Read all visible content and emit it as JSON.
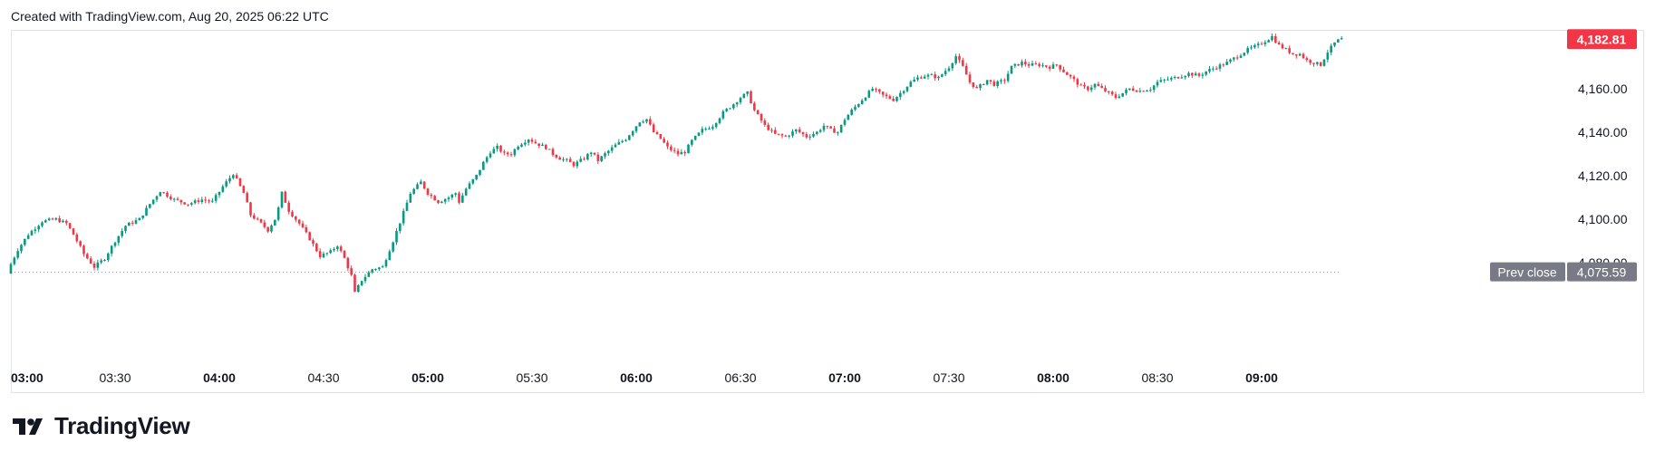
{
  "caption": "Created with TradingView.com, Aug 20, 2025 06:22 UTC",
  "brand": {
    "name": "TradingView",
    "logo_icon": "tradingview-logo-icon"
  },
  "colors": {
    "up": "#089981",
    "down": "#f23645",
    "prev_close_tag": "#787b86",
    "text": "#131722",
    "border": "#e0e3eb"
  },
  "chart_data": {
    "type": "candlestick",
    "title": "",
    "xlabel": "",
    "ylabel": "",
    "ylim": [
      4063,
      4190
    ],
    "xlim_minutes": [
      0,
      375
    ],
    "x_ticks": [
      {
        "label": "03:00",
        "minutes": 0,
        "bold": true
      },
      {
        "label": "03:30",
        "minutes": 30,
        "bold": false
      },
      {
        "label": "04:00",
        "minutes": 60,
        "bold": true
      },
      {
        "label": "04:30",
        "minutes": 90,
        "bold": false
      },
      {
        "label": "05:00",
        "minutes": 120,
        "bold": true
      },
      {
        "label": "05:30",
        "minutes": 150,
        "bold": false
      },
      {
        "label": "06:00",
        "minutes": 180,
        "bold": true
      },
      {
        "label": "06:30",
        "minutes": 210,
        "bold": false
      },
      {
        "label": "07:00",
        "minutes": 240,
        "bold": true
      },
      {
        "label": "07:30",
        "minutes": 270,
        "bold": false
      },
      {
        "label": "08:00",
        "minutes": 300,
        "bold": true
      },
      {
        "label": "08:30",
        "minutes": 330,
        "bold": false
      },
      {
        "label": "09:00",
        "minutes": 360,
        "bold": true
      }
    ],
    "y_ticks": [
      {
        "label": "4,080.00",
        "value": 4080
      },
      {
        "label": "4,100.00",
        "value": 4100
      },
      {
        "label": "4,120.00",
        "value": 4120
      },
      {
        "label": "4,140.00",
        "value": 4140
      },
      {
        "label": "4,160.00",
        "value": 4160
      }
    ],
    "last_price": {
      "label": "4,182.81",
      "value": 4182.81
    },
    "prev_close": {
      "label": "Prev close",
      "value_label": "4,075.59",
      "value": 4075.59
    },
    "grid": false,
    "path": [
      [
        0,
        4076
      ],
      [
        3,
        4086
      ],
      [
        6,
        4093
      ],
      [
        10,
        4099
      ],
      [
        14,
        4100
      ],
      [
        17,
        4098
      ],
      [
        19,
        4093
      ],
      [
        22,
        4084
      ],
      [
        25,
        4078
      ],
      [
        28,
        4082
      ],
      [
        31,
        4090
      ],
      [
        34,
        4097
      ],
      [
        38,
        4100
      ],
      [
        41,
        4107
      ],
      [
        44,
        4113
      ],
      [
        48,
        4109
      ],
      [
        52,
        4107
      ],
      [
        56,
        4109
      ],
      [
        59,
        4108
      ],
      [
        62,
        4115
      ],
      [
        65,
        4121
      ],
      [
        68,
        4112
      ],
      [
        70,
        4102
      ],
      [
        73,
        4098
      ],
      [
        75,
        4095
      ],
      [
        77,
        4100
      ],
      [
        78,
        4105
      ],
      [
        79,
        4112
      ],
      [
        81,
        4104
      ],
      [
        84,
        4098
      ],
      [
        87,
        4091
      ],
      [
        90,
        4083
      ],
      [
        93,
        4085
      ],
      [
        95,
        4088
      ],
      [
        97,
        4082
      ],
      [
        99,
        4074
      ],
      [
        100,
        4066
      ],
      [
        102,
        4072
      ],
      [
        105,
        4077
      ],
      [
        108,
        4078
      ],
      [
        111,
        4090
      ],
      [
        114,
        4103
      ],
      [
        116,
        4112
      ],
      [
        119,
        4117
      ],
      [
        121,
        4112
      ],
      [
        124,
        4108
      ],
      [
        127,
        4110
      ],
      [
        129,
        4112
      ],
      [
        130,
        4108
      ],
      [
        132,
        4114
      ],
      [
        135,
        4120
      ],
      [
        137,
        4126
      ],
      [
        139,
        4131
      ],
      [
        141,
        4133
      ],
      [
        143,
        4130
      ],
      [
        145,
        4130
      ],
      [
        147,
        4134
      ],
      [
        150,
        4137
      ],
      [
        152,
        4135
      ],
      [
        155,
        4133
      ],
      [
        157,
        4130
      ],
      [
        159,
        4128
      ],
      [
        161,
        4127
      ],
      [
        163,
        4125
      ],
      [
        166,
        4128
      ],
      [
        168,
        4131
      ],
      [
        170,
        4127
      ],
      [
        172,
        4130
      ],
      [
        175,
        4134
      ],
      [
        178,
        4137
      ],
      [
        180,
        4141
      ],
      [
        182,
        4145
      ],
      [
        184,
        4146
      ],
      [
        186,
        4140
      ],
      [
        188,
        4137
      ],
      [
        190,
        4133
      ],
      [
        193,
        4130
      ],
      [
        195,
        4131
      ],
      [
        197,
        4136
      ],
      [
        200,
        4141
      ],
      [
        203,
        4143
      ],
      [
        206,
        4149
      ],
      [
        209,
        4153
      ],
      [
        211,
        4156
      ],
      [
        213,
        4158
      ],
      [
        215,
        4150
      ],
      [
        218,
        4143
      ],
      [
        221,
        4139
      ],
      [
        224,
        4138
      ],
      [
        227,
        4141
      ],
      [
        230,
        4138
      ],
      [
        233,
        4140
      ],
      [
        235,
        4143
      ],
      [
        237,
        4141
      ],
      [
        239,
        4140
      ],
      [
        241,
        4146
      ],
      [
        243,
        4150
      ],
      [
        246,
        4155
      ],
      [
        249,
        4160
      ],
      [
        252,
        4157
      ],
      [
        255,
        4155
      ],
      [
        257,
        4158
      ],
      [
        260,
        4163
      ],
      [
        262,
        4165
      ],
      [
        264,
        4166
      ],
      [
        266,
        4166
      ],
      [
        268,
        4165
      ],
      [
        271,
        4170
      ],
      [
        273,
        4175
      ],
      [
        275,
        4170
      ],
      [
        277,
        4163
      ],
      [
        279,
        4160
      ],
      [
        282,
        4164
      ],
      [
        284,
        4162
      ],
      [
        287,
        4164
      ],
      [
        289,
        4170
      ],
      [
        292,
        4172
      ],
      [
        294,
        4171
      ],
      [
        297,
        4171
      ],
      [
        300,
        4170
      ],
      [
        302,
        4171
      ],
      [
        304,
        4168
      ],
      [
        307,
        4164
      ],
      [
        309,
        4161
      ],
      [
        311,
        4160
      ],
      [
        313,
        4162
      ],
      [
        315,
        4160
      ],
      [
        317,
        4158
      ],
      [
        319,
        4156
      ],
      [
        321,
        4158
      ],
      [
        323,
        4160
      ],
      [
        326,
        4159
      ],
      [
        329,
        4160
      ],
      [
        331,
        4163
      ],
      [
        333,
        4164
      ],
      [
        336,
        4165
      ],
      [
        338,
        4166
      ],
      [
        340,
        4167
      ],
      [
        343,
        4166
      ],
      [
        345,
        4168
      ],
      [
        348,
        4170
      ],
      [
        351,
        4172
      ],
      [
        354,
        4175
      ],
      [
        357,
        4178
      ],
      [
        360,
        4180
      ],
      [
        362,
        4182
      ],
      [
        364,
        4184
      ],
      [
        366,
        4180
      ],
      [
        368,
        4178
      ],
      [
        370,
        4176
      ],
      [
        372,
        4176
      ],
      [
        374,
        4173
      ],
      [
        376,
        4172
      ],
      [
        378,
        4171
      ],
      [
        380,
        4177
      ],
      [
        382,
        4181
      ],
      [
        383.5,
        4182.81
      ]
    ]
  }
}
